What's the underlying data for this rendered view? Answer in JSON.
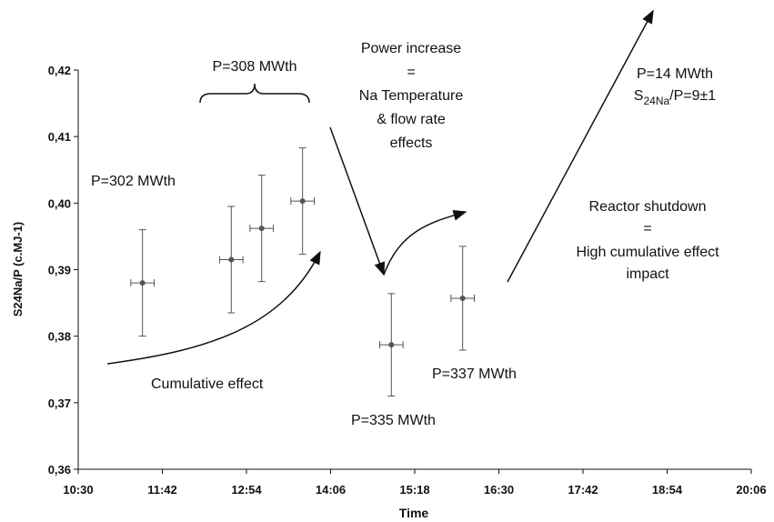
{
  "chart_data": {
    "type": "scatter",
    "ylabel": "S24Na/P (c.MJ-1)",
    "xlabel": "Time",
    "x": [
      685,
      761,
      787,
      822,
      898,
      959
    ],
    "xerr": [
      10,
      10,
      10,
      10,
      10,
      10
    ],
    "values": [
      0.388,
      0.3915,
      0.3962,
      0.4003,
      0.3787,
      0.3857
    ],
    "yerr": [
      0.008,
      0.008,
      0.008,
      0.008,
      0.0077,
      0.0078
    ],
    "color": "#555555",
    "xlim": [
      630,
      1206
    ],
    "xticks": [
      {
        "value": 630,
        "label": "10:30"
      },
      {
        "value": 702,
        "label": "11:42"
      },
      {
        "value": 774,
        "label": "12:54"
      },
      {
        "value": 846,
        "label": "14:06"
      },
      {
        "value": 918,
        "label": "15:18"
      },
      {
        "value": 990,
        "label": "16:30"
      },
      {
        "value": 1062,
        "label": "17:42"
      },
      {
        "value": 1134,
        "label": "18:54"
      },
      {
        "value": 1206,
        "label": "20:06"
      }
    ],
    "ylim": [
      0.36,
      0.42
    ],
    "yticks": [
      {
        "value": 0.36,
        "label": "0,36"
      },
      {
        "value": 0.37,
        "label": "0,37"
      },
      {
        "value": 0.38,
        "label": "0,38"
      },
      {
        "value": 0.39,
        "label": "0,39"
      },
      {
        "value": 0.4,
        "label": "0,40"
      },
      {
        "value": 0.41,
        "label": "0,41"
      },
      {
        "value": 0.42,
        "label": "0,42"
      }
    ],
    "annotations": {
      "p308": "P=308 MWth",
      "power": [
        "Power increase",
        "=",
        "Na Temperature",
        "& flow rate",
        "effects"
      ],
      "p302": "P=302 MWth",
      "cumulative": "Cumulative effect",
      "p335": "P=335 MWth",
      "p337": "P=337 MWth",
      "p14": "P=14 MWth",
      "ratio": [
        "S",
        "24Na",
        "/P=9±1"
      ],
      "shutdown": [
        "Reactor shutdown",
        "=",
        "High cumulative effect",
        "impact"
      ]
    }
  }
}
